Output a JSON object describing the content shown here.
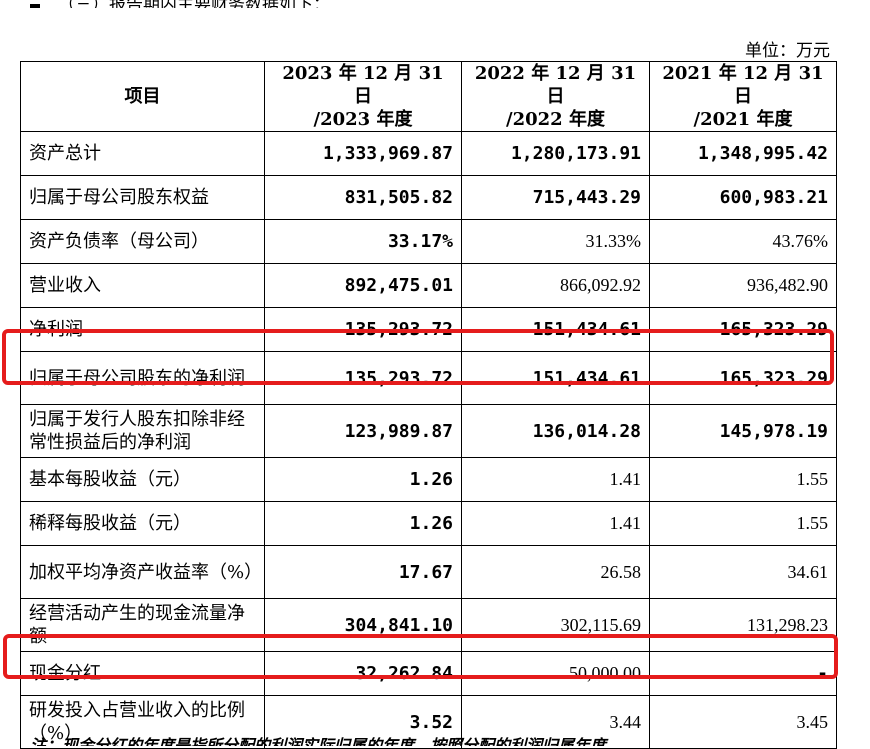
{
  "top_text": "（三）报告期内主要财务数据如下：",
  "unit": "单位：万元",
  "headers": [
    "项目",
    "2023 年 12 月 31 日/2023 年度",
    "2022 年 12 月 31 日/2022 年度",
    "2021 年 12 月 31 日/2021 年度"
  ],
  "header_lines": {
    "c0": "项目",
    "c1a": "2023 年 12 月 31 日",
    "c1b": "/2023 年度",
    "c2a": "2022 年 12 月 31 日",
    "c2b": "/2022 年度",
    "c3a": "2021 年 12 月 31 日",
    "c3b": "/2021 年度"
  },
  "rows": [
    {
      "label": "资产总计",
      "v2023": "1,333,969.87",
      "v2022": "1,280,173.91",
      "v2021": "1,348,995.42"
    },
    {
      "label": "归属于母公司股东权益",
      "v2023": "831,505.82",
      "v2022": "715,443.29",
      "v2021": "600,983.21"
    },
    {
      "label": "资产负债率（母公司）",
      "v2023": "33.17%",
      "v2022": "31.33%",
      "v2021": "43.76%"
    },
    {
      "label": "营业收入",
      "v2023": "892,475.01",
      "v2022": "866,092.92",
      "v2021": "936,482.90"
    },
    {
      "label": "净利润",
      "v2023": "135,293.72",
      "v2022": "151,434.61",
      "v2021": "165,323.29"
    },
    {
      "label": "归属于母公司股东的净利润",
      "v2023": "135,293.72",
      "v2022": "151,434.61",
      "v2021": "165,323.29"
    },
    {
      "label": "归属于发行人股东扣除非经常性损益后的净利润",
      "v2023": "123,989.87",
      "v2022": "136,014.28",
      "v2021": "145,978.19"
    },
    {
      "label": "基本每股收益（元）",
      "v2023": "1.26",
      "v2022": "1.41",
      "v2021": "1.55"
    },
    {
      "label": "稀释每股收益（元）",
      "v2023": "1.26",
      "v2022": "1.41",
      "v2021": "1.55"
    },
    {
      "label": "加权平均净资产收益率（%）",
      "v2023": "17.67",
      "v2022": "26.58",
      "v2021": "34.61"
    },
    {
      "label": "经营活动产生的现金流量净额",
      "v2023": "304,841.10",
      "v2022": "302,115.69",
      "v2021": "131,298.23"
    },
    {
      "label": "现金分红",
      "v2023": "32,262.84",
      "v2022": "50,000.00",
      "v2021": "-"
    },
    {
      "label": "研发投入占营业收入的比例（%）",
      "v2023": "3.52",
      "v2022": "3.44",
      "v2021": "3.45"
    }
  ],
  "bottom_text": "注：现金分红的年度是指所分配的利润实际归属的年度，按照分配的利润归属年度",
  "highlight_color": "#e51c1c"
}
